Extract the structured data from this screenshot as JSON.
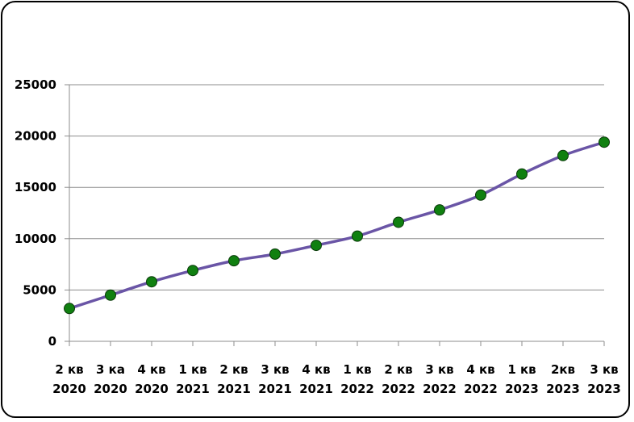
{
  "chart_data": {
    "type": "line",
    "title": "",
    "xlabel": "",
    "ylabel": "",
    "ylim": [
      0,
      25000
    ],
    "yticks": [
      0,
      5000,
      10000,
      15000,
      20000,
      25000
    ],
    "grid": true,
    "legend": "none",
    "smooth": true,
    "line_color": "#6a55a6",
    "marker_color": "#108010",
    "categories": [
      [
        "2 кв",
        "2020"
      ],
      [
        "3 ка",
        "2020"
      ],
      [
        "4 кв",
        "2020"
      ],
      [
        "1 кв",
        "2021"
      ],
      [
        "2 кв",
        "2021"
      ],
      [
        "3 кв",
        "2021"
      ],
      [
        "4 кв",
        "2021"
      ],
      [
        "1 кв",
        "2022"
      ],
      [
        "2 кв",
        "2022"
      ],
      [
        "3 кв",
        "2022"
      ],
      [
        "4 кв",
        "2022"
      ],
      [
        "1 кв",
        "2023"
      ],
      [
        "2кв",
        "2023"
      ],
      [
        "3 кв",
        "2023"
      ]
    ],
    "series": [
      {
        "values": [
          3200,
          4500,
          5800,
          6900,
          7850,
          8500,
          9350,
          10250,
          11600,
          12800,
          14250,
          16300,
          18100,
          19400
        ]
      }
    ]
  }
}
